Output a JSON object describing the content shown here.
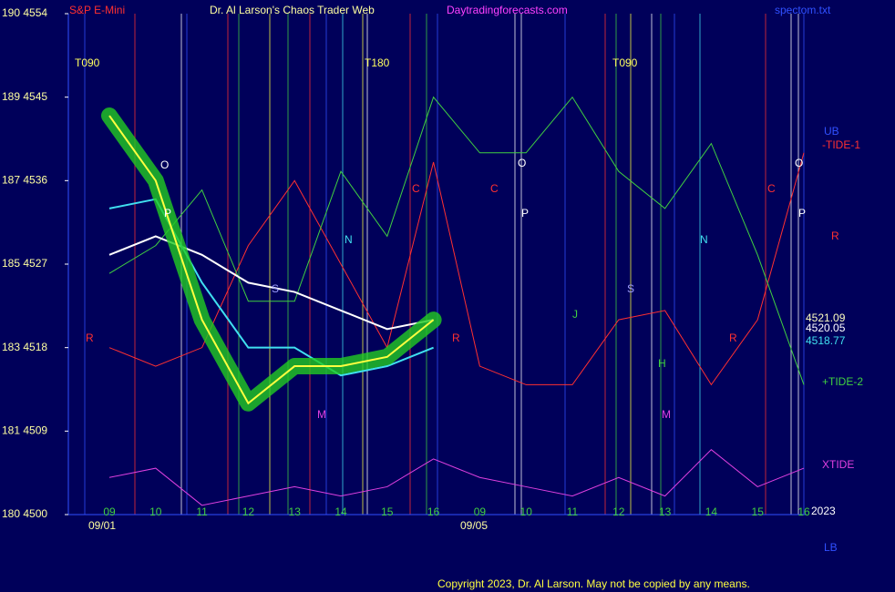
{
  "header": {
    "symbol": "S&P E-Mini",
    "title": "Dr. Al Larson's Chaos Trader Web",
    "site": "Daytradingforecasts.com",
    "file": "spectom.txt"
  },
  "footer": {
    "copyright": "Copyright 2023, Dr. Al Larson. May not be copied by any means.",
    "year": "2023"
  },
  "chart_data": {
    "type": "line",
    "background": "#00005a",
    "categories": [
      "09",
      "10",
      "11",
      "12",
      "13",
      "14",
      "15",
      "16",
      "09",
      "10",
      "11",
      "12",
      "13",
      "14",
      "15",
      "16"
    ],
    "dates": [
      "09/01",
      "09/05"
    ],
    "ylim": [
      4500,
      4554
    ],
    "yticks": [
      {
        "value": 4500,
        "label": "180  4500"
      },
      {
        "value": 4509,
        "label": "181  4509"
      },
      {
        "value": 4518,
        "label": "183  4518"
      },
      {
        "value": 4527,
        "label": "185  4527"
      },
      {
        "value": 4536,
        "label": "187  4536"
      },
      {
        "value": 4545,
        "label": "189  4545"
      },
      {
        "value": 4554,
        "label": "190  4554"
      }
    ],
    "series": [
      {
        "color": "#ff3030",
        "width": 1,
        "values": [
          4518,
          4516,
          4518,
          4529,
          4536,
          4527,
          4518,
          4538,
          4516,
          4514,
          4514,
          4521,
          4522,
          4514,
          4521,
          4539
        ]
      },
      {
        "color": "#40d040",
        "width": 1,
        "values": [
          4526,
          4529,
          4535,
          4523,
          4523,
          4537,
          4530,
          4545,
          4539,
          4539,
          4545,
          4537,
          4533,
          4540,
          4528,
          4514
        ]
      },
      {
        "color": "#e040e0",
        "width": 1,
        "values": [
          4504,
          4505,
          4501,
          4502,
          4503,
          4502,
          4503,
          4506,
          4504,
          4503,
          4502,
          4504,
          4502,
          4507,
          4503,
          4505
        ]
      },
      {
        "color": "#ffffff",
        "width": 2,
        "values": [
          4528,
          4530,
          4528,
          4525,
          4524,
          4522,
          4520,
          4521,
          null,
          null,
          null,
          null,
          null,
          null,
          null,
          null
        ]
      },
      {
        "color": "#40e0f0",
        "width": 2,
        "values": [
          4533,
          4534,
          4525,
          4518,
          4518,
          4515,
          4516,
          4518,
          null,
          null,
          null,
          null,
          null,
          null,
          null,
          null
        ]
      },
      {
        "color": "#ffff40",
        "width": 2,
        "glow": "#22cc22",
        "values": [
          4543,
          4536,
          4521,
          4512,
          4516,
          4516,
          4517,
          4521,
          null,
          null,
          null,
          null,
          null,
          null,
          null,
          null
        ]
      }
    ],
    "last_value_labels": [
      {
        "text": "4521.09",
        "color": "#ffffc0"
      },
      {
        "text": "4520.05",
        "color": "#ffffff"
      },
      {
        "text": "4518.77",
        "color": "#40e0f0"
      }
    ],
    "right_labels": [
      {
        "text": "UB",
        "color": "#3050ff"
      },
      {
        "text": "-TIDE-1",
        "color": "#ff3030"
      },
      {
        "text": "R",
        "color": "#ff3030"
      },
      {
        "text": "+TIDE-2",
        "color": "#40d040"
      },
      {
        "text": "XTIDE",
        "color": "#e040e0"
      },
      {
        "text": "LB",
        "color": "#3050ff"
      }
    ],
    "annotations": [
      {
        "text": "T090",
        "color": "#ffff60"
      },
      {
        "text": "T180",
        "color": "#ffff60"
      },
      {
        "text": "T090",
        "color": "#ffff60"
      },
      {
        "text": "O",
        "color": "#ffffff"
      },
      {
        "text": "P",
        "color": "#ffffff"
      },
      {
        "text": "N",
        "color": "#40e0f0"
      },
      {
        "text": "S",
        "color": "#a0a0ff"
      },
      {
        "text": "C",
        "color": "#ff3030"
      },
      {
        "text": "C",
        "color": "#ff3030"
      },
      {
        "text": "O",
        "color": "#ffffff"
      },
      {
        "text": "P",
        "color": "#ffffff"
      },
      {
        "text": "R",
        "color": "#ff3030"
      },
      {
        "text": "R",
        "color": "#ff3030"
      },
      {
        "text": "M",
        "color": "#e040e0"
      },
      {
        "text": "J",
        "color": "#40d040"
      },
      {
        "text": "S",
        "color": "#a0a0ff"
      },
      {
        "text": "H",
        "color": "#40d040"
      },
      {
        "text": "M",
        "color": "#e040e0"
      },
      {
        "text": "N",
        "color": "#40e0f0"
      },
      {
        "text": "R",
        "color": "#ff3030"
      },
      {
        "text": "C",
        "color": "#ff3030"
      },
      {
        "text": "O",
        "color": "#ffffff"
      },
      {
        "text": "P",
        "color": "#ffffff"
      }
    ]
  }
}
